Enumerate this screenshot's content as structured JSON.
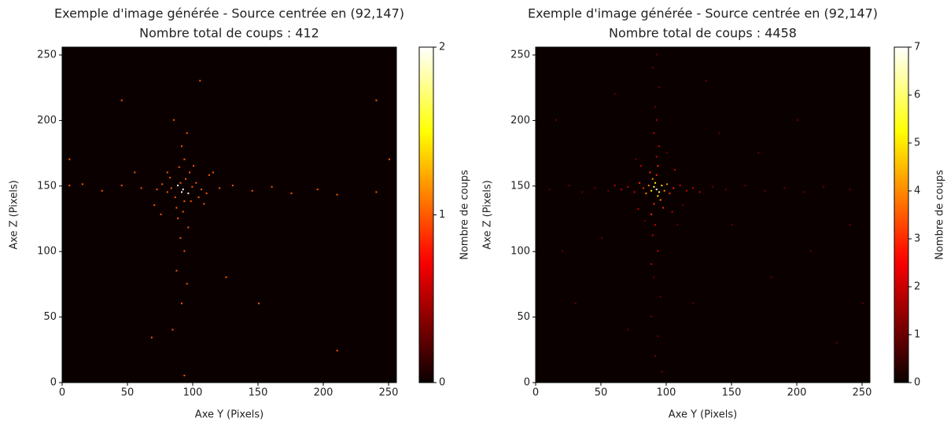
{
  "chart_data": [
    {
      "type": "heatmap",
      "title": "Exemple d'image générée - Source centrée en (92,147)",
      "subtitle": "Nombre total de coups : 412",
      "xlabel": "Axe Y (Pixels)",
      "ylabel": "Axe Z (Pixels)",
      "colorbar_label": "Nombre de coups",
      "colormap": "hot",
      "clim": [
        0,
        2
      ],
      "cticks": [
        0,
        1,
        2
      ],
      "xlim": [
        0,
        256
      ],
      "ylim": [
        0,
        256
      ],
      "xticks": [
        0,
        50,
        100,
        150,
        200,
        250
      ],
      "yticks": [
        0,
        50,
        100,
        150,
        200,
        250
      ],
      "x": [
        92,
        88,
        96,
        83,
        90,
        94,
        99,
        86,
        80,
        102,
        106,
        110,
        76,
        72,
        97,
        89,
        93,
        91,
        95,
        85,
        92,
        88,
        96,
        90,
        93,
        87,
        95,
        91,
        84,
        93,
        120,
        130,
        145,
        160,
        175,
        195,
        210,
        240,
        60,
        45,
        30,
        15,
        5,
        68,
        150,
        240,
        45,
        105,
        210,
        250,
        5,
        125,
        115,
        70,
        108,
        80,
        100,
        75,
        112,
        98,
        82,
        104,
        87,
        91,
        93,
        55
      ],
      "y": [
        147,
        150,
        144,
        148,
        152,
        155,
        149,
        141,
        145,
        152,
        147,
        144,
        151,
        147,
        160,
        164,
        170,
        180,
        190,
        200,
        130,
        125,
        118,
        110,
        100,
        85,
        75,
        60,
        40,
        5,
        148,
        150,
        146,
        149,
        144,
        147,
        143,
        145,
        148,
        150,
        146,
        151,
        150,
        34,
        60,
        215,
        215,
        230,
        24,
        170,
        170,
        80,
        160,
        135,
        136,
        160,
        165,
        128,
        158,
        138,
        156,
        141,
        133,
        145,
        138,
        160
      ],
      "values": [
        2,
        2,
        2,
        1,
        1,
        1,
        1,
        1,
        1,
        1,
        1,
        1,
        1,
        1,
        1,
        1,
        1,
        1,
        1,
        1,
        1,
        1,
        1,
        1,
        1,
        1,
        1,
        1,
        1,
        1,
        1,
        1,
        1,
        1,
        1,
        1,
        1,
        1,
        1,
        1,
        1,
        1,
        1,
        1,
        1,
        1,
        1,
        1,
        1,
        1,
        1,
        1,
        1,
        1,
        1,
        1,
        1,
        1,
        1,
        1,
        1,
        1,
        1,
        2,
        1,
        1
      ]
    },
    {
      "type": "heatmap",
      "title": "Exemple d'image générée - Source centrée en (92,147)",
      "subtitle": "Nombre total de coups : 4458",
      "xlabel": "Axe Y (Pixels)",
      "ylabel": "Axe Z (Pixels)",
      "colorbar_label": "Nombre de coups",
      "colormap": "hot",
      "clim": [
        0,
        7
      ],
      "cticks": [
        0,
        1,
        2,
        3,
        4,
        5,
        6,
        7
      ],
      "xlim": [
        0,
        256
      ],
      "ylim": [
        0,
        256
      ],
      "xticks": [
        0,
        50,
        100,
        150,
        200,
        250
      ],
      "yticks": [
        0,
        50,
        100,
        150,
        200,
        250
      ],
      "x": [
        92,
        90,
        94,
        88,
        96,
        91,
        93,
        86,
        98,
        89,
        95,
        84,
        100,
        92,
        90,
        82,
        102,
        87,
        97,
        79,
        105,
        93,
        88,
        75,
        110,
        92,
        91,
        70,
        115,
        94,
        89,
        65,
        120,
        90,
        93,
        60,
        125,
        92,
        88,
        80,
        104,
        78,
        106,
        55,
        135,
        145,
        160,
        175,
        190,
        205,
        220,
        240,
        45,
        35,
        25,
        10,
        91,
        94,
        89,
        92,
        90,
        95,
        88,
        93,
        91,
        96,
        150,
        30,
        200,
        60,
        180,
        230,
        20,
        130,
        240,
        15,
        170,
        50,
        120,
        210,
        70,
        140,
        250,
        100,
        83,
        112,
        76,
        108
      ],
      "y": [
        147,
        149,
        145,
        146,
        150,
        152,
        142,
        150,
        146,
        155,
        139,
        144,
        151,
        158,
        136,
        148,
        144,
        160,
        133,
        152,
        148,
        165,
        128,
        145,
        150,
        172,
        120,
        149,
        146,
        180,
        112,
        147,
        148,
        190,
        100,
        150,
        145,
        200,
        90,
        165,
        130,
        132,
        162,
        146,
        149,
        147,
        150,
        146,
        148,
        145,
        149,
        147,
        148,
        145,
        150,
        147,
        210,
        225,
        240,
        250,
        80,
        65,
        50,
        35,
        20,
        8,
        120,
        60,
        200,
        220,
        80,
        30,
        100,
        230,
        120,
        200,
        175,
        110,
        60,
        100,
        40,
        190,
        60,
        175,
        123,
        135,
        170,
        120
      ],
      "values": [
        7,
        6,
        6,
        5,
        5,
        5,
        5,
        4,
        4,
        4,
        4,
        4,
        4,
        3,
        3,
        3,
        3,
        3,
        3,
        3,
        3,
        3,
        3,
        2,
        2,
        2,
        2,
        2,
        2,
        2,
        2,
        2,
        2,
        2,
        2,
        2,
        2,
        2,
        2,
        2,
        2,
        2,
        2,
        1,
        1,
        1,
        1,
        1,
        1,
        1,
        1,
        1,
        1,
        1,
        1,
        1,
        1,
        1,
        1,
        1,
        1,
        1,
        1,
        1,
        1,
        1,
        1,
        1,
        1,
        1,
        1,
        1,
        1,
        1,
        1,
        1,
        1,
        1,
        1,
        1,
        1,
        1,
        1,
        1,
        1,
        1,
        1,
        1
      ]
    }
  ]
}
